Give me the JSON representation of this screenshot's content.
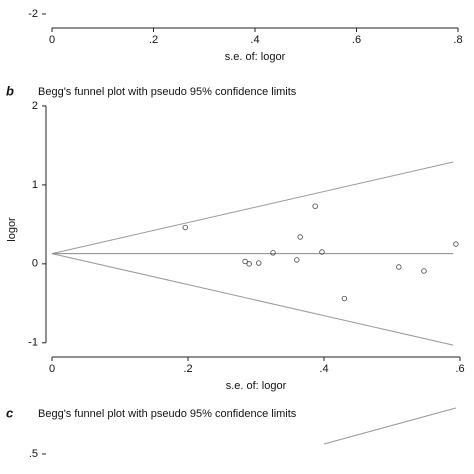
{
  "chart_data": [
    {
      "type": "scatter",
      "xlabel": "s.e. of: logor",
      "xlim": [
        0,
        0.8
      ],
      "xticks": [
        0,
        {
          "value": 0.2,
          "label": ".2"
        },
        {
          "value": 0.4,
          "label": ".4"
        },
        {
          "value": 0.6,
          "label": ".6"
        },
        {
          "value": 0.8,
          "label": ".8"
        }
      ],
      "ylim": [
        -2.25,
        -1.75
      ],
      "yticks": [
        -2
      ]
    },
    {
      "type": "scatter",
      "panel": "b",
      "title": "Begg's funnel plot with pseudo 95% confidence limits",
      "xlabel": "s.e. of: logor",
      "ylabel": "logor",
      "xlim": [
        0,
        0.6
      ],
      "xticks": [
        0,
        {
          "value": 0.2,
          "label": ".2"
        },
        {
          "value": 0.4,
          "label": ".4"
        },
        {
          "value": 0.6,
          "label": ".6"
        }
      ],
      "ylim": [
        -1.18,
        2.05
      ],
      "yticks": [
        -1,
        0,
        1,
        2
      ],
      "x": [
        0.196,
        0.284,
        0.29,
        0.304,
        0.325,
        0.36,
        0.365,
        0.387,
        0.397,
        0.43,
        0.51,
        0.547,
        0.594
      ],
      "values": [
        0.46,
        0.03,
        0.0,
        0.01,
        0.14,
        0.05,
        0.34,
        0.73,
        0.15,
        -0.44,
        -0.04,
        -0.09,
        0.25
      ],
      "lines": [
        {
          "x": [
            0,
            0.59
          ],
          "values": [
            0.13,
            1.29
          ],
          "color": "#999999"
        },
        {
          "x": [
            0,
            0.59
          ],
          "values": [
            0.13,
            -1.03
          ],
          "color": "#999999"
        },
        {
          "x": [
            0,
            0.59
          ],
          "values": [
            0.13,
            0.13
          ],
          "color": "#888888"
        }
      ]
    },
    {
      "type": "scatter",
      "panel": "c",
      "title": "Begg's funnel plot with pseudo 95% confidence limits",
      "xlim": [
        0,
        0.6
      ],
      "ylim": [
        0.42,
        0.7
      ],
      "yticks": [
        {
          "value": 0.5,
          "label": ".5"
        }
      ],
      "lines": [
        {
          "x": [
            0.4,
            0.594
          ],
          "values": [
            0.54,
            0.684
          ],
          "color": "#999999"
        }
      ]
    }
  ]
}
